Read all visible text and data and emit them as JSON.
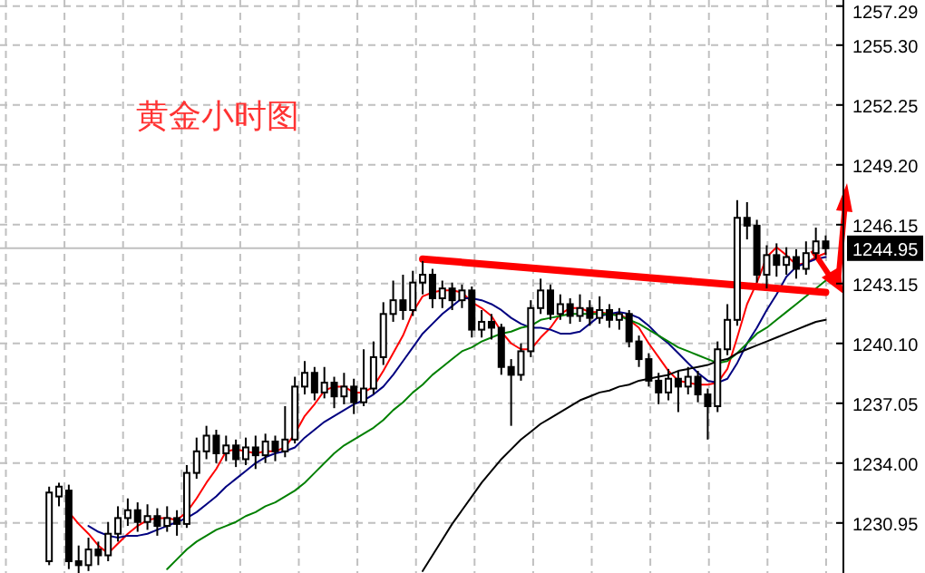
{
  "chart_data": {
    "type": "candlestick",
    "title": "黄金小时图",
    "categories": [
      null,
      null,
      null,
      null,
      null,
      null,
      null,
      null,
      null,
      null,
      null,
      null,
      null,
      null,
      null,
      null,
      null,
      null,
      null,
      null,
      null,
      null,
      null,
      null,
      null,
      null,
      null,
      null,
      null,
      null,
      null,
      null,
      null,
      null,
      null,
      null,
      null,
      null,
      null,
      null,
      null,
      null,
      null,
      null,
      null,
      null,
      null,
      null,
      null,
      null,
      null,
      null,
      null,
      null,
      null,
      null,
      null,
      null,
      null,
      null,
      null,
      null,
      null,
      null,
      null,
      null,
      null,
      null,
      null,
      null,
      null,
      null,
      null,
      null,
      null,
      null,
      null,
      null,
      null,
      null
    ],
    "ohlc": [
      [
        1229,
        1232.8,
        1228.8,
        1232.5
      ],
      [
        1232.3,
        1233,
        1231.8,
        1232.8
      ],
      [
        1232.6,
        1232.9,
        1228.6,
        1229
      ],
      [
        1229,
        1229.8,
        1228.4,
        1228.8
      ],
      [
        1228.8,
        1230.2,
        1228.5,
        1229.6
      ],
      [
        1229.6,
        1230,
        1228.8,
        1229.3
      ],
      [
        1229.3,
        1231,
        1229,
        1230.4
      ],
      [
        1230.4,
        1231.8,
        1230,
        1231.2
      ],
      [
        1231.2,
        1232.2,
        1230.8,
        1231.6
      ],
      [
        1231.6,
        1232,
        1230.5,
        1231
      ],
      [
        1231,
        1231.9,
        1230.6,
        1231.3
      ],
      [
        1231.3,
        1231.7,
        1230.3,
        1230.8
      ],
      [
        1230.8,
        1231.8,
        1230.5,
        1231.2
      ],
      [
        1231.2,
        1231.6,
        1230.3,
        1230.9
      ],
      [
        1230.9,
        1233.9,
        1230.7,
        1233.5
      ],
      [
        1233.5,
        1235.3,
        1233.2,
        1234.6
      ],
      [
        1234.6,
        1235.9,
        1234.2,
        1235.4
      ],
      [
        1235.4,
        1235.7,
        1234,
        1234.5
      ],
      [
        1234.5,
        1235.4,
        1234.1,
        1234.9
      ],
      [
        1234.9,
        1235.2,
        1233.8,
        1234.2
      ],
      [
        1234.2,
        1235.3,
        1233.9,
        1234.8
      ],
      [
        1234.8,
        1235.4,
        1233.7,
        1234.4
      ],
      [
        1234.4,
        1235.5,
        1234,
        1235.1
      ],
      [
        1235.1,
        1235.4,
        1234.1,
        1234.6
      ],
      [
        1234.6,
        1236.9,
        1234.3,
        1235.2
      ],
      [
        1235.2,
        1238.4,
        1235,
        1237.9
      ],
      [
        1237.9,
        1239.2,
        1237.5,
        1238.6
      ],
      [
        1238.6,
        1238.9,
        1237.2,
        1237.6
      ],
      [
        1237.6,
        1238.9,
        1237.3,
        1238.1
      ],
      [
        1238.1,
        1238.4,
        1236.8,
        1237.4
      ],
      [
        1237.4,
        1238.6,
        1237,
        1237.9
      ],
      [
        1237.9,
        1238.3,
        1236.5,
        1237.1
      ],
      [
        1237.1,
        1239.8,
        1236.9,
        1237.8
      ],
      [
        1237.8,
        1240.2,
        1237.5,
        1239.4
      ],
      [
        1239.4,
        1242.2,
        1239,
        1241.6
      ],
      [
        1241.6,
        1243.3,
        1241.2,
        1242.3
      ],
      [
        1242.3,
        1243.6,
        1241.3,
        1241.8
      ],
      [
        1241.8,
        1243.8,
        1241.5,
        1243.2
      ],
      [
        1243.2,
        1244.3,
        1242.6,
        1243.6
      ],
      [
        1243.6,
        1243.9,
        1241.9,
        1242.4
      ],
      [
        1242.4,
        1243.3,
        1241.9,
        1242.9
      ],
      [
        1242.9,
        1243.2,
        1241.8,
        1242.3
      ],
      [
        1242.3,
        1243.1,
        1241.9,
        1242.8
      ],
      [
        1242.8,
        1243,
        1240.4,
        1240.8
      ],
      [
        1240.8,
        1241.8,
        1240.4,
        1241.2
      ],
      [
        1241.2,
        1241.6,
        1240.3,
        1240.9
      ],
      [
        1240.9,
        1241.1,
        1238.5,
        1238.9
      ],
      [
        1238.9,
        1239.3,
        1235.9,
        1238.5
      ],
      [
        1238.5,
        1240.1,
        1238.2,
        1239.7
      ],
      [
        1239.7,
        1242.3,
        1239.4,
        1241.9
      ],
      [
        1241.9,
        1243.4,
        1241.6,
        1242.8
      ],
      [
        1242.8,
        1243.1,
        1241.3,
        1241.6
      ],
      [
        1241.6,
        1242.6,
        1241.3,
        1242.1
      ],
      [
        1242.1,
        1242.4,
        1241.1,
        1241.5
      ],
      [
        1241.5,
        1242.6,
        1241.2,
        1241.9
      ],
      [
        1241.9,
        1242.3,
        1241,
        1241.4
      ],
      [
        1241.4,
        1242.5,
        1241.1,
        1241.8
      ],
      [
        1241.8,
        1242.1,
        1240.9,
        1241.3
      ],
      [
        1241.3,
        1241.9,
        1240.8,
        1241.6
      ],
      [
        1241.6,
        1241.8,
        1239.9,
        1240.2
      ],
      [
        1240.2,
        1240.5,
        1238.9,
        1239.3
      ],
      [
        1239.3,
        1239.6,
        1237.9,
        1238.2
      ],
      [
        1238.2,
        1238.6,
        1237,
        1237.6
      ],
      [
        1237.6,
        1238.8,
        1237.2,
        1238.3
      ],
      [
        1238.3,
        1238.7,
        1236.6,
        1237.9
      ],
      [
        1237.9,
        1238.9,
        1237.5,
        1238.4
      ],
      [
        1238.4,
        1238.7,
        1237.1,
        1237.5
      ],
      [
        1237.5,
        1237.8,
        1235.2,
        1236.9
      ],
      [
        1236.9,
        1240.2,
        1236.6,
        1239.8
      ],
      [
        1239.8,
        1242.1,
        1239.5,
        1241.3
      ],
      [
        1241.3,
        1247.4,
        1241,
        1246.5
      ],
      [
        1246.5,
        1247.3,
        1245.4,
        1246.1
      ],
      [
        1246.1,
        1246.4,
        1243.2,
        1243.6
      ],
      [
        1243.6,
        1245.1,
        1242.9,
        1244.6
      ],
      [
        1244.6,
        1245.2,
        1243.5,
        1244.1
      ],
      [
        1244.1,
        1245,
        1243.6,
        1244.5
      ],
      [
        1244.5,
        1244.9,
        1243.4,
        1243.9
      ],
      [
        1243.9,
        1245.3,
        1243.6,
        1244.7
      ],
      [
        1244.7,
        1246,
        1244.4,
        1245.3
      ],
      [
        1245.3,
        1245.6,
        1244.6,
        1244.95
      ]
    ],
    "series": [
      {
        "type": "line",
        "color": "#ff0000",
        "values": [
          null,
          null,
          1231.5,
          1230.9,
          1230.4,
          1229.8,
          1229.4,
          1229.9,
          1230.4,
          1230.8,
          1231.1,
          1231.2,
          1231.2,
          1231.1,
          1231.5,
          1232.2,
          1233,
          1233.7,
          1234.6,
          1234.7,
          1234.6,
          1234.5,
          1234.6,
          1234.6,
          1234.8,
          1235.5,
          1236.4,
          1237,
          1237.7,
          1237.9,
          1237.9,
          1237.6,
          1237.6,
          1237.9,
          1238.7,
          1239.6,
          1240.5,
          1241.7,
          1242.5,
          1242.7,
          1242.8,
          1242.8,
          1242.7,
          1242.2,
          1241.9,
          1241.5,
          1240.7,
          1240.1,
          1239.8,
          1239.8,
          1240.4,
          1240.9,
          1241.6,
          1241.9,
          1241.9,
          1241.7,
          1241.7,
          1241.6,
          1241.6,
          1241.3,
          1240.9,
          1240.1,
          1239.4,
          1238.7,
          1238.2,
          1238.1,
          1238,
          1238,
          1238.1,
          1238.8,
          1240.4,
          1242.1,
          1243.2,
          1244.5,
          1245,
          1244.6,
          1244.1,
          1244.2,
          1244.5,
          1244.7
        ]
      },
      {
        "type": "line",
        "color": "#000080",
        "values": [
          null,
          null,
          null,
          null,
          1230.8,
          1230.5,
          1230.3,
          1230.2,
          1230.3,
          1230.3,
          1230.4,
          1230.6,
          1230.8,
          1231,
          1231.2,
          1231.5,
          1231.9,
          1232.3,
          1232.8,
          1233.2,
          1233.6,
          1234,
          1234.3,
          1234.5,
          1234.6,
          1234.8,
          1235.3,
          1235.7,
          1236.1,
          1236.4,
          1236.7,
          1237,
          1237.2,
          1237.5,
          1237.9,
          1238.5,
          1239.2,
          1239.9,
          1240.6,
          1241.1,
          1241.6,
          1242,
          1242.4,
          1242.4,
          1242.3,
          1242.1,
          1241.8,
          1241.4,
          1241.1,
          1240.9,
          1240.9,
          1240.8,
          1240.6,
          1240.6,
          1240.7,
          1241.1,
          1241.5,
          1241.6,
          1241.7,
          1241.6,
          1241.4,
          1241,
          1240.5,
          1240.1,
          1239.6,
          1239.1,
          1238.6,
          1238.2,
          1238.1,
          1238.3,
          1239.1,
          1240.1,
          1240.9,
          1241.8,
          1242.6,
          1243.5,
          1244,
          1244.2,
          1244.4,
          1244.5
        ]
      },
      {
        "type": "line",
        "color": "#008000",
        "values": [
          null,
          null,
          null,
          null,
          null,
          null,
          null,
          null,
          null,
          null,
          null,
          null,
          1228.6,
          1229.1,
          1229.6,
          1230,
          1230.3,
          1230.6,
          1230.8,
          1231,
          1231.3,
          1231.5,
          1231.8,
          1232,
          1232.3,
          1232.6,
          1233,
          1233.5,
          1234,
          1234.5,
          1234.9,
          1235.2,
          1235.5,
          1235.8,
          1236.2,
          1236.7,
          1237.1,
          1237.6,
          1238,
          1238.5,
          1238.9,
          1239.3,
          1239.7,
          1239.9,
          1240.2,
          1240.4,
          1240.6,
          1240.7,
          1240.9,
          1241,
          1241.3,
          1241.4,
          1241.5,
          1241.6,
          1241.6,
          1241.6,
          1241.6,
          1241.6,
          1241.5,
          1241.3,
          1241.1,
          1240.8,
          1240.5,
          1240.2,
          1239.9,
          1239.7,
          1239.5,
          1239.3,
          1239.1,
          1239.2,
          1239.6,
          1240.1,
          1240.6,
          1240.9,
          1241.3,
          1241.7,
          1242.1,
          1242.5,
          1242.9,
          1243.3
        ]
      },
      {
        "type": "line",
        "color": "#000000",
        "values": [
          null,
          null,
          null,
          null,
          null,
          null,
          null,
          null,
          null,
          null,
          null,
          null,
          null,
          null,
          null,
          null,
          null,
          null,
          null,
          null,
          null,
          null,
          null,
          null,
          null,
          null,
          null,
          null,
          null,
          null,
          null,
          null,
          null,
          null,
          null,
          null,
          null,
          null,
          1228.5,
          1229.3,
          1230.1,
          1230.9,
          1231.6,
          1232.3,
          1233,
          1233.6,
          1234.2,
          1234.7,
          1235.2,
          1235.6,
          1236,
          1236.3,
          1236.6,
          1236.9,
          1237.2,
          1237.4,
          1237.6,
          1237.7,
          1237.9,
          1238,
          1238.2,
          1238.3,
          1238.4,
          1238.5,
          1238.7,
          1238.8,
          1238.9,
          1239,
          1239.2,
          1239.3,
          1239.6,
          1239.8,
          1240,
          1240.2,
          1240.4,
          1240.6,
          1240.8,
          1241,
          1241.2,
          1241.3
        ]
      },
      {
        "type": "line",
        "color": "#ff0000",
        "values": [
          null,
          null,
          null,
          null,
          null,
          null,
          null,
          null,
          null,
          null,
          null,
          null,
          null,
          null,
          null,
          null,
          null,
          null,
          null,
          null,
          null,
          null,
          null,
          null,
          null,
          null,
          null,
          null,
          null,
          null,
          null,
          null,
          null,
          null,
          null,
          null,
          null,
          null,
          1244.4,
          null,
          null,
          null,
          null,
          null,
          null,
          null,
          null,
          null,
          null,
          null,
          null,
          null,
          null,
          null,
          null,
          null,
          null,
          null,
          null,
          null,
          null,
          null,
          null,
          null,
          null,
          null,
          null,
          null,
          null,
          null,
          null,
          null,
          null,
          null,
          null,
          null,
          null,
          null,
          null,
          1242.7
        ]
      }
    ],
    "ylim": [
      1228.4,
      1257.6
    ],
    "yticks": [
      1230.95,
      {
        "value": 1234,
        "label": "1234.00"
      },
      1237.05,
      {
        "value": 1240.1,
        "label": "1240.10"
      },
      1243.15,
      1246.15,
      {
        "value": 1249.2,
        "label": "1249.20"
      },
      1252.25,
      {
        "value": 1255.3,
        "label": "1255.30"
      },
      1257.29
    ],
    "ref_lines": [
      {
        "axis": "y",
        "value": 1244.95,
        "label": "1244.95",
        "color": "#c0c0c0"
      }
    ],
    "grid": true
  }
}
